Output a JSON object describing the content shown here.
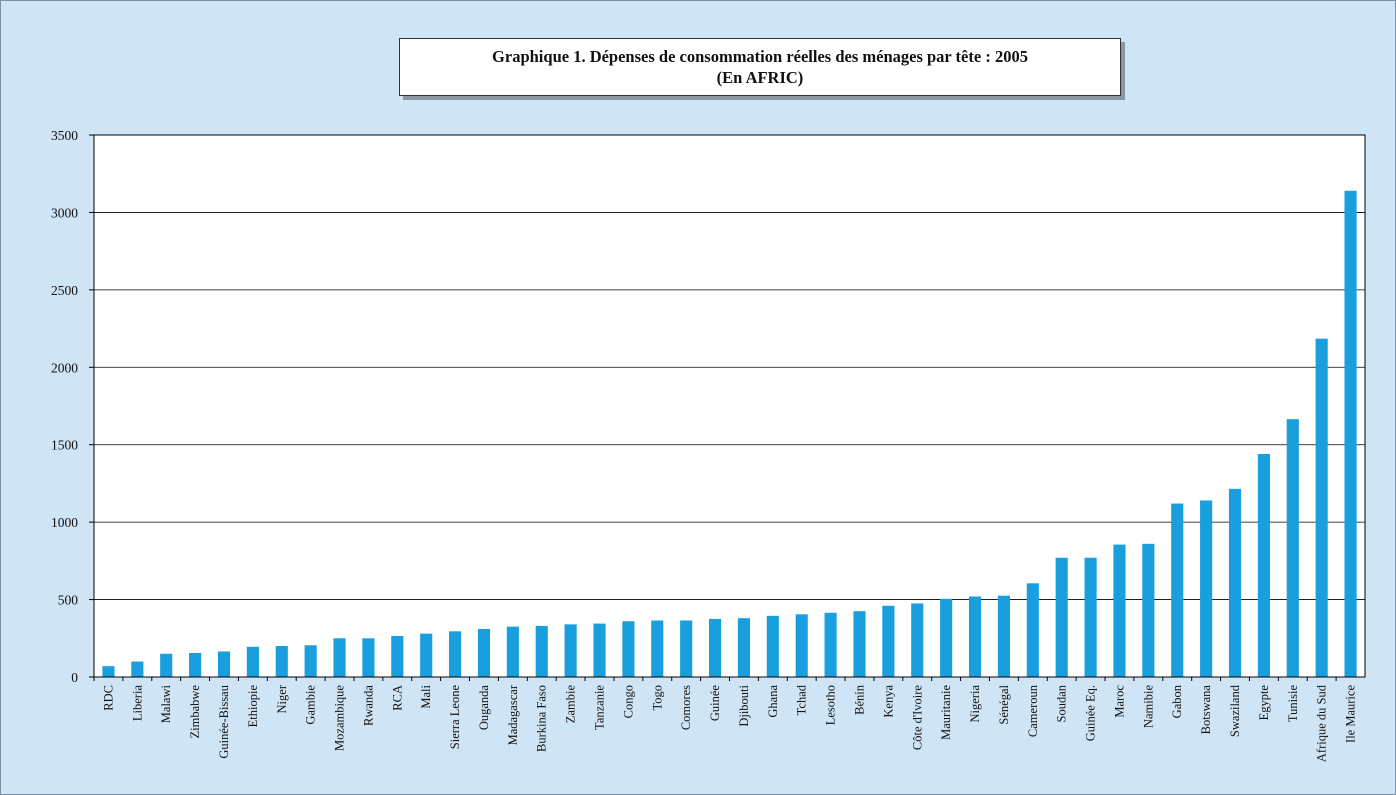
{
  "title_line1": "Graphique 1. Dépenses de consommation réelles des ménages par tête : 2005",
  "title_line2": "(En AFRIC)",
  "colors": {
    "bar": "#1a9fde",
    "background": "#cfe4f5",
    "plot": "#ffffff"
  },
  "chart_data": {
    "type": "bar",
    "title": "Graphique 1. Dépenses de consommation réelles des ménages par tête : 2005 (En AFRIC)",
    "xlabel": "",
    "ylabel": "",
    "ylim": [
      0,
      3500
    ],
    "yticks": [
      0,
      500,
      1000,
      1500,
      2000,
      2500,
      3000,
      3500
    ],
    "grid": true,
    "categories": [
      "RDC",
      "Liberia",
      "Malawi",
      "Zimbabwe",
      "Guinée-Bissau",
      "Ethiopie",
      "Niger",
      "Gambie",
      "Mozambique",
      "Rwanda",
      "RCA",
      "Mali",
      "Sierra Leone",
      "Ouganda",
      "Madagascar",
      "Burkina Faso",
      "Zambie",
      "Tanzanie",
      "Congo",
      "Togo",
      "Comores",
      "Guinée",
      "Djibouti",
      "Ghana",
      "Tchad",
      "Lesotho",
      "Bénin",
      "Kenya",
      "Côte d'Ivoire",
      "Mauritanie",
      "Nigeria",
      "Sénégal",
      "Cameroun",
      "Soudan",
      "Guinée Eq.",
      "Maroc",
      "Namibie",
      "Gabon",
      "Botswana",
      "Swaziland",
      "Egypte",
      "Tunisie",
      "Afrique du Sud",
      "Ile Maurice"
    ],
    "values": [
      70,
      100,
      150,
      155,
      165,
      195,
      200,
      205,
      250,
      250,
      265,
      280,
      295,
      310,
      325,
      330,
      340,
      345,
      360,
      365,
      365,
      375,
      380,
      395,
      405,
      415,
      425,
      460,
      475,
      505,
      520,
      525,
      605,
      770,
      770,
      855,
      860,
      1120,
      1140,
      1215,
      1440,
      1665,
      2185,
      3140
    ]
  }
}
